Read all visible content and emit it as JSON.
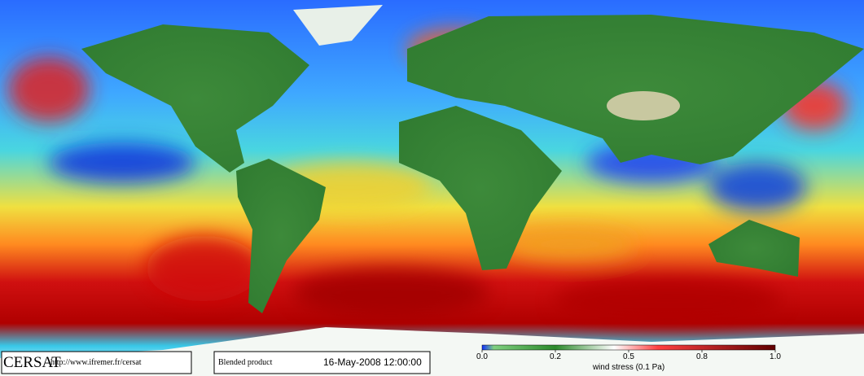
{
  "footer": {
    "logo": "CERSAT",
    "url": "http://www.ifremer.fr/cersat",
    "product": "Blended product",
    "date": "16-May-2008 12:00:00"
  },
  "colorbar": {
    "label": "wind stress (0.1 Pa)",
    "ticks": [
      {
        "value": 0,
        "label": "0.0"
      },
      0.2,
      0.5,
      0.8,
      {
        "value": 1,
        "label": "1.0"
      }
    ]
  }
}
